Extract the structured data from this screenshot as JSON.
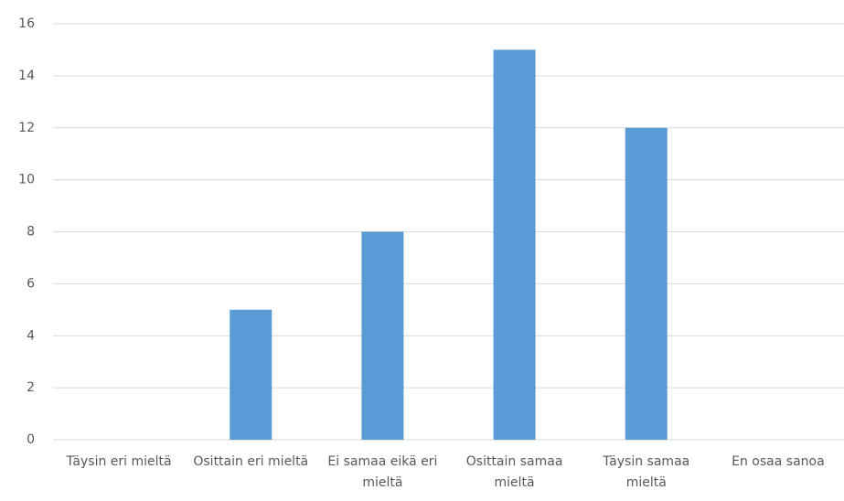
{
  "chart_data": {
    "type": "bar",
    "categories": [
      "Täysin eri mieltä",
      "Osittain eri mieltä",
      "Ei samaa eikä eri mieltä",
      "Osittain samaa mieltä",
      "Täysin samaa mieltä",
      "En osaa sanoa"
    ],
    "values": [
      0,
      5,
      8,
      15,
      12,
      0
    ],
    "color": "#5b9bd5",
    "ylim": [
      0,
      16
    ],
    "yticks": [
      0,
      2,
      4,
      6,
      8,
      10,
      12,
      14,
      16
    ],
    "grid": true
  }
}
